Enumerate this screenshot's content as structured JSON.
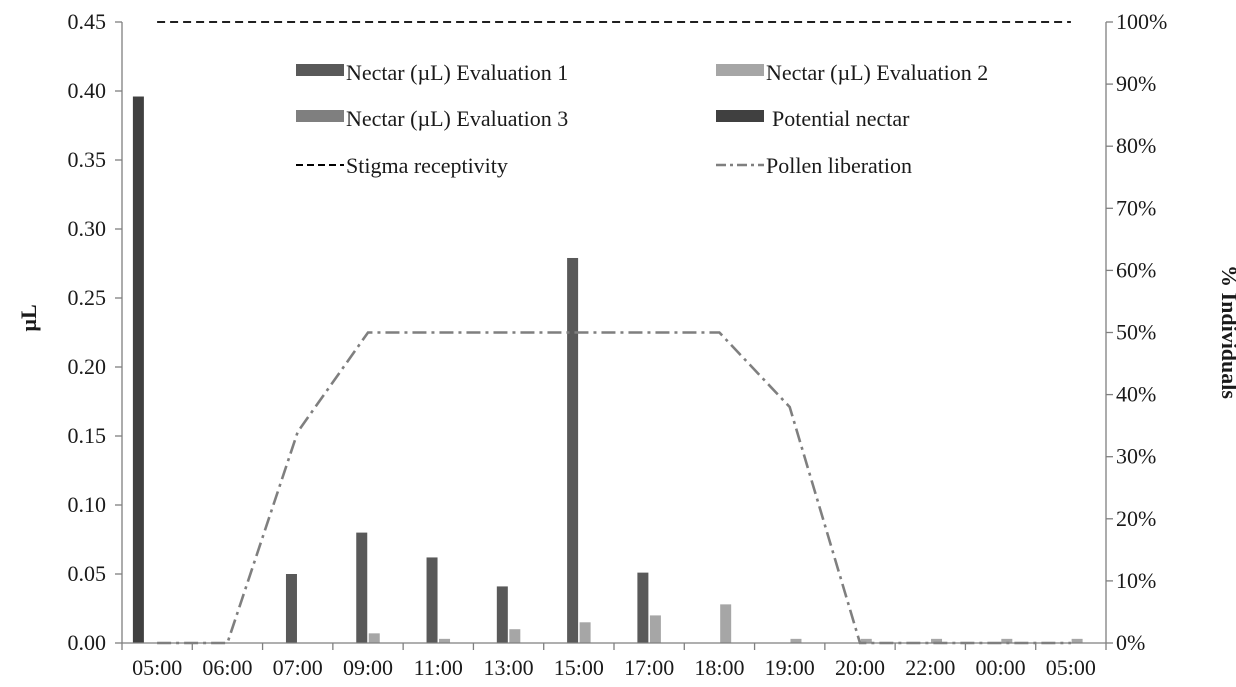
{
  "chart_data": {
    "type": "bar",
    "categories": [
      "05:00",
      "06:00",
      "07:00",
      "09:00",
      "11:00",
      "13:00",
      "15:00",
      "17:00",
      "18:00",
      "19:00",
      "20:00",
      "22:00",
      "00:00",
      "05:00"
    ],
    "ylabel": "µL",
    "y2label": "% Individuals",
    "ylim": [
      0,
      0.45
    ],
    "y2lim": [
      0,
      1
    ],
    "yticks": [
      "0.00",
      "0.05",
      "0.10",
      "0.15",
      "0.20",
      "0.25",
      "0.30",
      "0.35",
      "0.40",
      "0.45"
    ],
    "y2ticks": [
      "0%",
      "10%",
      "20%",
      "30%",
      "40%",
      "50%",
      "60%",
      "70%",
      "80%",
      "90%",
      "100%"
    ],
    "legend": "top, two columns",
    "grid": false,
    "series": [
      {
        "name": "Nectar (µL) Evaluation 1",
        "kind": "bar",
        "axis": "left",
        "color": "#595959",
        "values": [
          0,
          0,
          0.05,
          0.08,
          0.062,
          0.041,
          0.279,
          0.051,
          0,
          0,
          0,
          0,
          0,
          0
        ]
      },
      {
        "name": "Nectar (µL) Evaluation 2",
        "kind": "bar",
        "axis": "left",
        "color": "#a6a6a6",
        "values": [
          0,
          0,
          0,
          0.007,
          0.003,
          0.01,
          0.015,
          0.02,
          0.028,
          0.003,
          0.003,
          0.003,
          0.003,
          0.003
        ]
      },
      {
        "name": "Nectar (µL) Evaluation 3",
        "kind": "bar",
        "axis": "left",
        "color": "#7f7f7f",
        "values": [
          0,
          0,
          0,
          0,
          0,
          0,
          0,
          0,
          0,
          0,
          0,
          0,
          0,
          0
        ]
      },
      {
        "name": "Potential nectar",
        "kind": "bar",
        "axis": "left",
        "color": "#404040",
        "values": [
          0.396,
          0,
          0,
          0,
          0,
          0,
          0,
          0,
          0,
          0,
          0,
          0,
          0,
          0
        ]
      },
      {
        "name": "Stigma receptivity",
        "kind": "line",
        "dash": "dashed",
        "axis": "right",
        "color": "#000000",
        "values": [
          1,
          1,
          1,
          1,
          1,
          1,
          1,
          1,
          1,
          1,
          1,
          1,
          1,
          1
        ]
      },
      {
        "name": "Pollen liberation",
        "kind": "line",
        "dash": "dash-dot",
        "axis": "right",
        "color": "#7f7f7f",
        "values": [
          0,
          0,
          0.34,
          0.5,
          0.5,
          0.5,
          0.5,
          0.5,
          0.5,
          0.38,
          0,
          0,
          0,
          0
        ]
      }
    ]
  }
}
